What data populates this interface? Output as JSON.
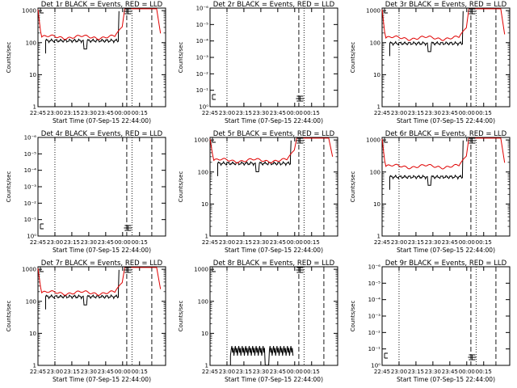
{
  "chart_data": [
    {
      "id": "1r",
      "title": "Det 1r BLACK = Events, RED = LLD",
      "ylabel": "Counts/sec",
      "xlabel": "Start Time (07-Sep-15 22:44:00)",
      "type": "line",
      "scale": "log",
      "yticks": [
        "1",
        "10",
        "100",
        "1000"
      ],
      "ylim": [
        1,
        1200
      ],
      "xticks": [
        "22:45",
        "23:00",
        "23:15",
        "23:30",
        "23:45",
        "00:00",
        "00:15"
      ],
      "series": [
        {
          "name": "BLACK",
          "color": "#000000",
          "shape": "black_high",
          "level": 115
        },
        {
          "name": "RED",
          "color": "#e00000",
          "shape": "red_high",
          "level": 150
        }
      ]
    },
    {
      "id": "2r",
      "title": "Det 2r BLACK = Events, RED = LLD",
      "ylabel": "Counts/sec",
      "xlabel": "Start Time (07-Sep-15 22:44:00)",
      "type": "line",
      "scale": "log",
      "yticks": [
        "10⁰",
        "10⁻¹",
        "10⁻²",
        "10⁻³",
        "10⁻⁴",
        "10⁻⁵",
        "10⁻⁶"
      ],
      "ylim": [
        1e-06,
        1
      ],
      "xticks": [
        "22:45",
        "23:00",
        "23:15",
        "23:30",
        "23:45",
        "00:00",
        "00:15"
      ],
      "series": [
        {
          "name": "BLACK",
          "color": "#000000",
          "shape": "none"
        },
        {
          "name": "RED",
          "color": "#e00000",
          "shape": "none"
        }
      ]
    },
    {
      "id": "3r",
      "title": "Det 3r BLACK = Events, RED = LLD",
      "ylabel": "Counts/sec",
      "xlabel": "Start Time (07-Sep-15 22:44:00)",
      "type": "line",
      "scale": "log",
      "yticks": [
        "1",
        "10",
        "100",
        "1000"
      ],
      "ylim": [
        1,
        1200
      ],
      "xticks": [
        "22:45",
        "23:00",
        "23:15",
        "23:30",
        "23:45",
        "00:00",
        "00:15"
      ],
      "series": [
        {
          "name": "BLACK",
          "color": "#000000",
          "shape": "black_high",
          "level": 95
        },
        {
          "name": "RED",
          "color": "#e00000",
          "shape": "red_high",
          "level": 140
        }
      ]
    },
    {
      "id": "4r",
      "title": "Det 4r BLACK = Events, RED = LLD",
      "ylabel": "Counts/sec",
      "xlabel": "Start Time (07-Sep-15 22:44:00)",
      "type": "line",
      "scale": "log",
      "yticks": [
        "10⁰",
        "10⁻¹",
        "10⁻²",
        "10⁻³",
        "10⁻⁴",
        "10⁻⁵",
        "10⁻⁶"
      ],
      "ylim": [
        1e-06,
        1
      ],
      "xticks": [
        "22:45",
        "23:00",
        "23:15",
        "23:30",
        "23:45",
        "00:00",
        "00:15"
      ],
      "series": [
        {
          "name": "BLACK",
          "color": "#000000",
          "shape": "none"
        },
        {
          "name": "RED",
          "color": "#e00000",
          "shape": "none"
        }
      ]
    },
    {
      "id": "5r",
      "title": "Det 5r BLACK = Events, RED = LLD",
      "ylabel": "Counts/sec",
      "xlabel": "Start Time (07-Sep-15 22:44:00)",
      "type": "line",
      "scale": "log",
      "yticks": [
        "1",
        "10",
        "100",
        "1000"
      ],
      "ylim": [
        1,
        1200
      ],
      "xticks": [
        "22:45",
        "23:00",
        "23:15",
        "23:30",
        "23:45",
        "00:00",
        "00:15"
      ],
      "series": [
        {
          "name": "BLACK",
          "color": "#000000",
          "shape": "black_high",
          "level": 185
        },
        {
          "name": "RED",
          "color": "#e00000",
          "shape": "red_high",
          "level": 230
        }
      ]
    },
    {
      "id": "6r",
      "title": "Det 6r BLACK = Events, RED = LLD",
      "ylabel": "Counts/sec",
      "xlabel": "Start Time (07-Sep-15 22:44:00)",
      "type": "line",
      "scale": "log",
      "yticks": [
        "1",
        "10",
        "100",
        "1000"
      ],
      "ylim": [
        1,
        1200
      ],
      "xticks": [
        "22:45",
        "23:00",
        "23:15",
        "23:30",
        "23:45",
        "00:00",
        "00:15"
      ],
      "series": [
        {
          "name": "BLACK",
          "color": "#000000",
          "shape": "black_high",
          "level": 70
        },
        {
          "name": "RED",
          "color": "#e00000",
          "shape": "red_high",
          "level": 150
        }
      ]
    },
    {
      "id": "7r",
      "title": "Det 7r BLACK = Events, RED = LLD",
      "ylabel": "Counts/sec",
      "xlabel": "Start Time (07-Sep-15 22:44:00)",
      "type": "line",
      "scale": "log",
      "yticks": [
        "1",
        "10",
        "100",
        "1000"
      ],
      "ylim": [
        1,
        1200
      ],
      "xticks": [
        "22:45",
        "23:00",
        "23:15",
        "23:30",
        "23:45",
        "00:00",
        "00:15"
      ],
      "series": [
        {
          "name": "BLACK",
          "color": "#000000",
          "shape": "black_high",
          "level": 140
        },
        {
          "name": "RED",
          "color": "#e00000",
          "shape": "red_high",
          "level": 185
        }
      ]
    },
    {
      "id": "8r",
      "title": "Det 8r BLACK = Events, RED = LLD",
      "ylabel": "Counts/sec",
      "xlabel": "Start Time (07-Sep-15 22:44:00)",
      "type": "line",
      "scale": "log",
      "yticks": [
        "1",
        "10",
        "100",
        "1000"
      ],
      "ylim": [
        1,
        1200
      ],
      "xticks": [
        "22:45",
        "23:00",
        "23:15",
        "23:30",
        "23:45",
        "00:00",
        "00:15"
      ],
      "series": [
        {
          "name": "BLACK",
          "color": "#000000",
          "shape": "black_low",
          "level": 3
        },
        {
          "name": "RED",
          "color": "#e00000",
          "shape": "none"
        }
      ]
    },
    {
      "id": "9r",
      "title": "Det 9r BLACK = Events, RED = LLD",
      "ylabel": "Counts/sec",
      "xlabel": "Start Time (07-Sep-15 22:44:00)",
      "type": "line",
      "scale": "log",
      "yticks": [
        "10⁰",
        "10⁻¹",
        "10⁻²",
        "10⁻³",
        "10⁻⁴",
        "10⁻⁵",
        "10⁻⁶"
      ],
      "ylim": [
        1e-06,
        1
      ],
      "xticks": [
        "22:45",
        "23:00",
        "23:15",
        "23:30",
        "23:45",
        "00:00",
        "00:15"
      ],
      "series": [
        {
          "name": "BLACK",
          "color": "#000000",
          "shape": "none"
        },
        {
          "name": "RED",
          "color": "#e00000",
          "shape": "none"
        }
      ]
    }
  ]
}
